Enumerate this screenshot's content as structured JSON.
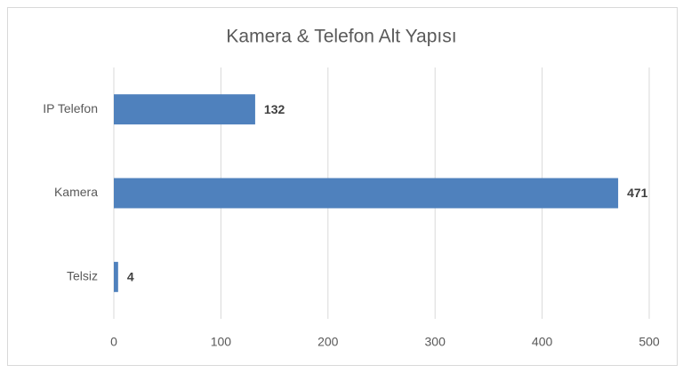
{
  "chart_data": {
    "type": "bar",
    "orientation": "horizontal",
    "title": "Kamera & Telefon Alt Yapısı",
    "categories": [
      "IP Telefon",
      "Kamera",
      "Telsiz"
    ],
    "values": [
      132,
      471,
      4
    ],
    "color": "#4f81bd",
    "xlim": [
      0,
      500
    ],
    "xticks": [
      0,
      100,
      200,
      300,
      400,
      500
    ],
    "grid": true
  }
}
